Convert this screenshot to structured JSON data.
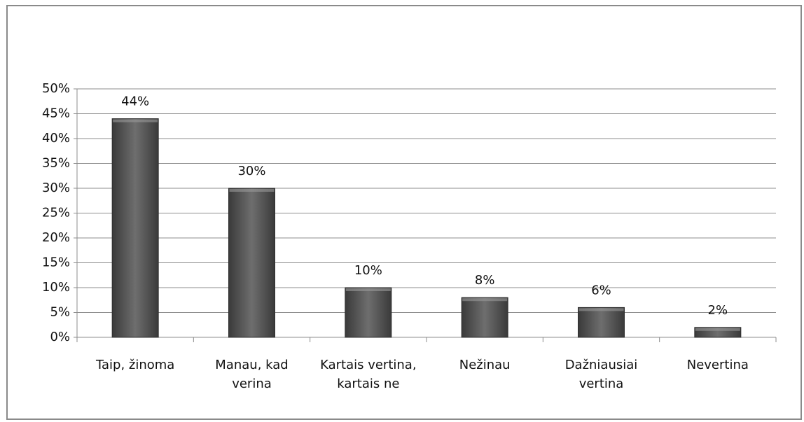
{
  "chart_data": {
    "type": "bar",
    "categories": [
      "Taip, žinoma",
      "Manau, kad verina",
      "Kartais vertina, kartais ne",
      "Nežinau",
      "Dažniausiai vertina",
      "Nevertina"
    ],
    "values": [
      44,
      30,
      10,
      8,
      6,
      2
    ],
    "value_labels": [
      "44%",
      "30%",
      "10%",
      "8%",
      "6%",
      "2%"
    ],
    "color": "#5f5f5f",
    "ylim": [
      0,
      50
    ],
    "yticks": [
      {
        "value": 0,
        "label": "0%"
      },
      {
        "value": 5,
        "label": "5%"
      },
      {
        "value": 10,
        "label": "10%"
      },
      {
        "value": 15,
        "label": "15%"
      },
      {
        "value": 20,
        "label": "20%"
      },
      {
        "value": 25,
        "label": "25%"
      },
      {
        "value": 30,
        "label": "30%"
      },
      {
        "value": 35,
        "label": "35%"
      },
      {
        "value": 40,
        "label": "40%"
      },
      {
        "value": 45,
        "label": "45%"
      },
      {
        "value": 50,
        "label": "50%"
      }
    ],
    "grid": true
  }
}
